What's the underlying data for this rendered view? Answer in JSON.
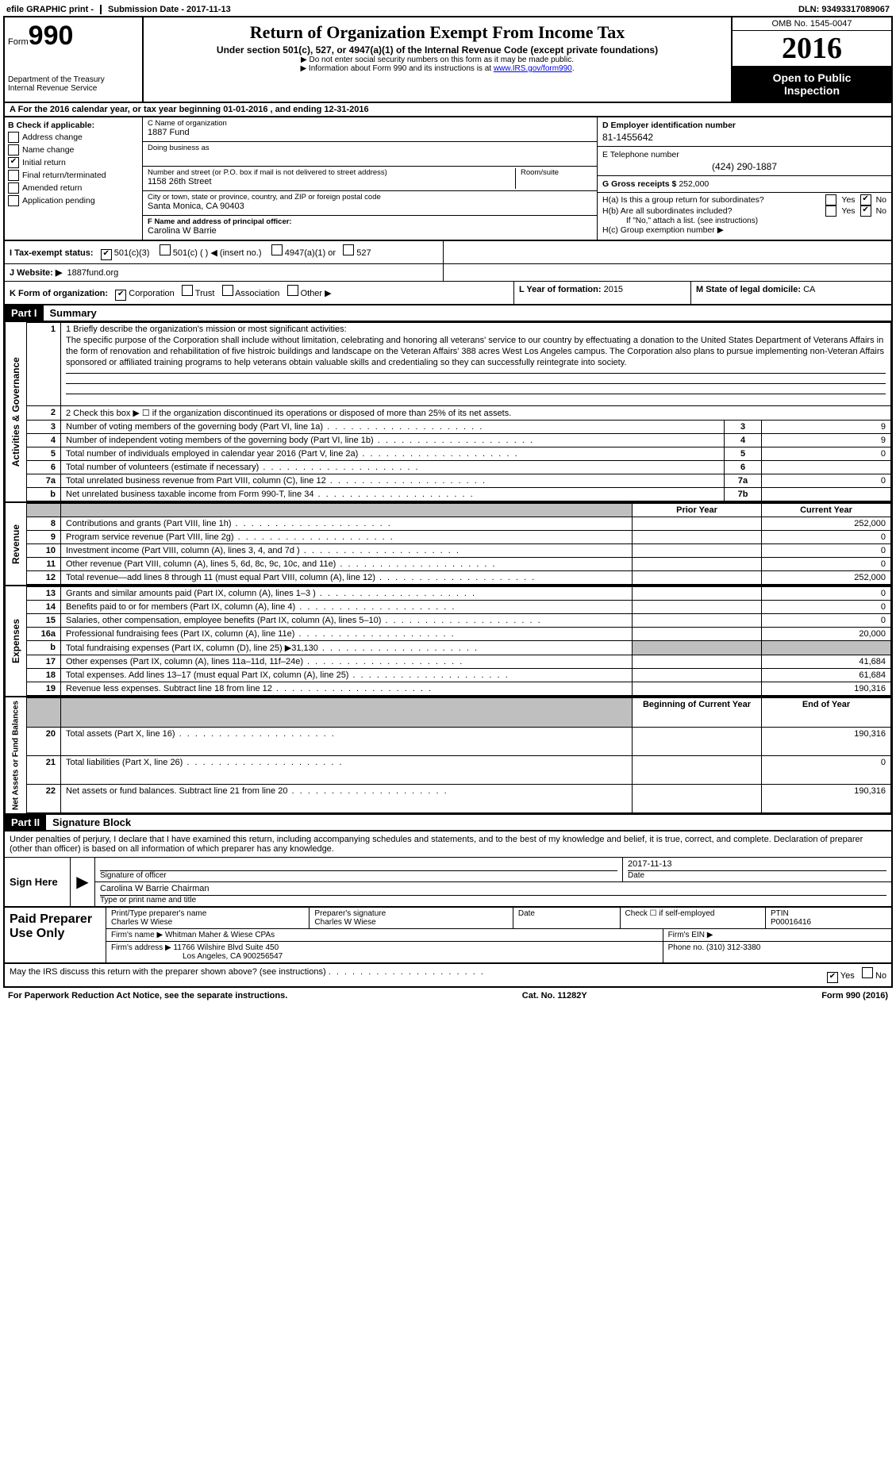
{
  "top": {
    "efile": "efile GRAPHIC print - ",
    "sub_label": "Submission Date - ",
    "sub_date": "2017-11-13",
    "dln_label": "DLN: ",
    "dln": "93493317089067"
  },
  "header": {
    "form_prefix": "Form",
    "form_num": "990",
    "dept1": "Department of the Treasury",
    "dept2": "Internal Revenue Service",
    "title": "Return of Organization Exempt From Income Tax",
    "sub": "Under section 501(c), 527, or 4947(a)(1) of the Internal Revenue Code (except private foundations)",
    "note1": "▶ Do not enter social security numbers on this form as it may be made public.",
    "note2_a": "▶ Information about Form 990 and its instructions is at ",
    "note2_link": "www.IRS.gov/form990",
    "omb": "OMB No. 1545-0047",
    "year": "2016",
    "open1": "Open to Public",
    "open2": "Inspection"
  },
  "rowA": "A  For the 2016 calendar year, or tax year beginning 01-01-2016   , and ending 12-31-2016",
  "boxB": {
    "title": "B Check if applicable:",
    "items": [
      {
        "label": "Address change",
        "checked": false
      },
      {
        "label": "Name change",
        "checked": false
      },
      {
        "label": "Initial return",
        "checked": true
      },
      {
        "label": "Final return/terminated",
        "checked": false
      },
      {
        "label": "Amended return",
        "checked": false
      },
      {
        "label": "Application pending",
        "checked": false
      }
    ]
  },
  "boxC": {
    "name_lbl": "C Name of organization",
    "name": "1887 Fund",
    "dba_lbl": "Doing business as",
    "addr_lbl": "Number and street (or P.O. box if mail is not delivered to street address)",
    "addr": "1158 26th Street",
    "room_lbl": "Room/suite",
    "city_lbl": "City or town, state or province, country, and ZIP or foreign postal code",
    "city": "Santa Monica, CA  90403"
  },
  "boxF": {
    "lbl": "F Name and address of principal officer:",
    "name": "Carolina W Barrie"
  },
  "boxD": {
    "lbl": "D Employer identification number",
    "val": "81-1455642"
  },
  "boxE": {
    "lbl": "E Telephone number",
    "val": "(424) 290-1887"
  },
  "boxG": {
    "lbl": "G Gross receipts $",
    "val": "252,000"
  },
  "boxH": {
    "a": "H(a)  Is this a group return for subordinates?",
    "b": "H(b)  Are all subordinates included?",
    "b_note": "If \"No,\" attach a list. (see instructions)",
    "c": "H(c)  Group exemption number ▶",
    "yes": "Yes",
    "no": "No",
    "a_no_checked": true,
    "b_no_checked": true
  },
  "rowI": {
    "lbl": "I  Tax-exempt status:",
    "o1": "501(c)(3)",
    "o1_checked": true,
    "o2": "501(c) (  ) ◀ (insert no.)",
    "o3": "4947(a)(1) or",
    "o4": "527"
  },
  "rowJ": {
    "lbl": "J  Website: ▶",
    "val": "1887fund.org"
  },
  "rowK": {
    "lbl": "K Form of organization:",
    "o1": "Corporation",
    "o1_checked": true,
    "o2": "Trust",
    "o3": "Association",
    "o4": "Other ▶",
    "l_lbl": "L Year of formation:",
    "l_val": "2015",
    "m_lbl": "M State of legal domicile:",
    "m_val": "CA"
  },
  "part1": {
    "hdr": "Part I",
    "title": "Summary"
  },
  "summary": {
    "line1_lbl": "1  Briefly describe the organization's mission or most significant activities:",
    "mission": "The specific purpose of the Corporation shall include without limitation, celebrating and honoring all veterans' service to our country by effectuating a donation to the United States Department of Veterans Affairs in the form of renovation and rehabilitation of five histroic buildings and landscape on the Veteran Affairs' 388 acres West Los Angeles campus. The Corporation also plans to pursue implementing non-Veteran Affairs sponsored or affiliated training programs to help veterans obtain valuable skills and credentialing so they can successfully reintegrate into society.",
    "line2": "2   Check this box ▶ ☐ if the organization discontinued its operations or disposed of more than 25% of its net assets.",
    "lines_gov": [
      {
        "n": "3",
        "desc": "Number of voting members of the governing body (Part VI, line 1a)",
        "r": "3",
        "v": "9"
      },
      {
        "n": "4",
        "desc": "Number of independent voting members of the governing body (Part VI, line 1b)",
        "r": "4",
        "v": "9"
      },
      {
        "n": "5",
        "desc": "Total number of individuals employed in calendar year 2016 (Part V, line 2a)",
        "r": "5",
        "v": "0"
      },
      {
        "n": "6",
        "desc": "Total number of volunteers (estimate if necessary)",
        "r": "6",
        "v": ""
      },
      {
        "n": "7a",
        "desc": "Total unrelated business revenue from Part VIII, column (C), line 12",
        "r": "7a",
        "v": "0"
      },
      {
        "n": "b",
        "desc": "Net unrelated business taxable income from Form 990-T, line 34",
        "r": "7b",
        "v": ""
      }
    ],
    "col_prior": "Prior Year",
    "col_current": "Current Year",
    "lines_rev": [
      {
        "n": "8",
        "desc": "Contributions and grants (Part VIII, line 1h)",
        "p": "",
        "c": "252,000"
      },
      {
        "n": "9",
        "desc": "Program service revenue (Part VIII, line 2g)",
        "p": "",
        "c": "0"
      },
      {
        "n": "10",
        "desc": "Investment income (Part VIII, column (A), lines 3, 4, and 7d )",
        "p": "",
        "c": "0"
      },
      {
        "n": "11",
        "desc": "Other revenue (Part VIII, column (A), lines 5, 6d, 8c, 9c, 10c, and 11e)",
        "p": "",
        "c": "0"
      },
      {
        "n": "12",
        "desc": "Total revenue—add lines 8 through 11 (must equal Part VIII, column (A), line 12)",
        "p": "",
        "c": "252,000"
      }
    ],
    "lines_exp": [
      {
        "n": "13",
        "desc": "Grants and similar amounts paid (Part IX, column (A), lines 1–3 )",
        "p": "",
        "c": "0"
      },
      {
        "n": "14",
        "desc": "Benefits paid to or for members (Part IX, column (A), line 4)",
        "p": "",
        "c": "0"
      },
      {
        "n": "15",
        "desc": "Salaries, other compensation, employee benefits (Part IX, column (A), lines 5–10)",
        "p": "",
        "c": "0"
      },
      {
        "n": "16a",
        "desc": "Professional fundraising fees (Part IX, column (A), line 11e)",
        "p": "",
        "c": "20,000"
      },
      {
        "n": "b",
        "desc": "Total fundraising expenses (Part IX, column (D), line 25) ▶31,130",
        "p": "grey",
        "c": "grey"
      },
      {
        "n": "17",
        "desc": "Other expenses (Part IX, column (A), lines 11a–11d, 11f–24e)",
        "p": "",
        "c": "41,684"
      },
      {
        "n": "18",
        "desc": "Total expenses. Add lines 13–17 (must equal Part IX, column (A), line 25)",
        "p": "",
        "c": "61,684"
      },
      {
        "n": "19",
        "desc": "Revenue less expenses. Subtract line 18 from line 12",
        "p": "",
        "c": "190,316"
      }
    ],
    "col_begin": "Beginning of Current Year",
    "col_end": "End of Year",
    "lines_net": [
      {
        "n": "20",
        "desc": "Total assets (Part X, line 16)",
        "p": "",
        "c": "190,316"
      },
      {
        "n": "21",
        "desc": "Total liabilities (Part X, line 26)",
        "p": "",
        "c": "0"
      },
      {
        "n": "22",
        "desc": "Net assets or fund balances. Subtract line 21 from line 20",
        "p": "",
        "c": "190,316"
      }
    ],
    "vlabels": {
      "gov": "Activities & Governance",
      "rev": "Revenue",
      "exp": "Expenses",
      "net": "Net Assets or Fund Balances"
    }
  },
  "part2": {
    "hdr": "Part II",
    "title": "Signature Block"
  },
  "sig": {
    "perjury": "Under penalties of perjury, I declare that I have examined this return, including accompanying schedules and statements, and to the best of my knowledge and belief, it is true, correct, and complete. Declaration of preparer (other than officer) is based on all information of which preparer has any knowledge.",
    "sign_here": "Sign Here",
    "sig_officer_lbl": "Signature of officer",
    "date_lbl": "Date",
    "date_val": "2017-11-13",
    "name_title": "Carolina W Barrie Chairman",
    "name_title_lbl": "Type or print name and title"
  },
  "paid": {
    "left": "Paid Preparer Use Only",
    "p_name_lbl": "Print/Type preparer's name",
    "p_name": "Charles W Wiese",
    "p_sig_lbl": "Preparer's signature",
    "p_sig": "Charles W Wiese",
    "p_date_lbl": "Date",
    "self_lbl": "Check ☐ if self-employed",
    "ptin_lbl": "PTIN",
    "ptin": "P00016416",
    "firm_name_lbl": "Firm's name    ▶",
    "firm_name": "Whitman Maher & Wiese CPAs",
    "firm_ein_lbl": "Firm's EIN ▶",
    "firm_addr_lbl": "Firm's address ▶",
    "firm_addr1": "11766 Wilshire Blvd Suite 450",
    "firm_addr2": "Los Angeles, CA  900256547",
    "phone_lbl": "Phone no.",
    "phone": "(310) 312-3380"
  },
  "bottom": {
    "q": "May the IRS discuss this return with the preparer shown above? (see instructions)",
    "yes": "Yes",
    "no": "No",
    "yes_checked": true
  },
  "footer": {
    "left": "For Paperwork Reduction Act Notice, see the separate instructions.",
    "mid": "Cat. No. 11282Y",
    "right": "Form 990 (2016)"
  }
}
